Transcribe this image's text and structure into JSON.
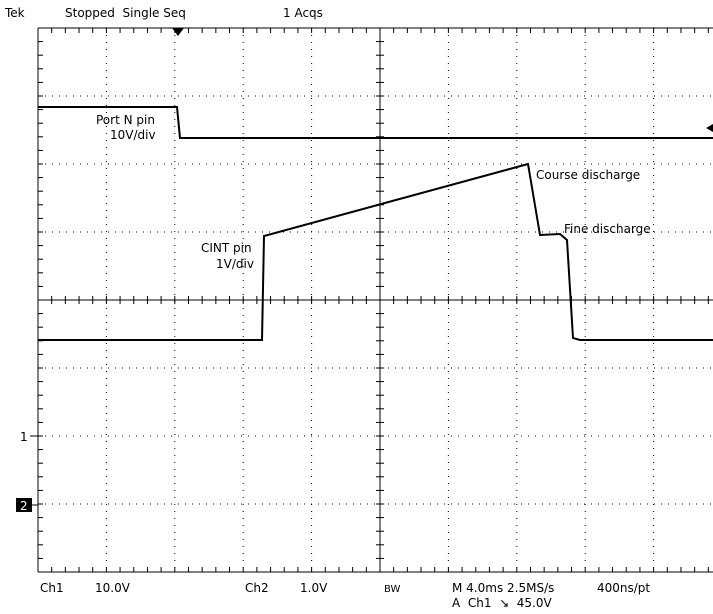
{
  "header": {
    "brand": "Tek",
    "status": "Stopped  Single Seq",
    "acquisitions": "1 Acqs"
  },
  "traces": {
    "ch1_label": "Port N pin",
    "ch1_scale": "10V/div",
    "ch2_label": "CINT pin",
    "ch2_scale": "1V/div",
    "annotations": [
      "Course discharge",
      "Fine discharge"
    ],
    "markers": [
      "1",
      "2"
    ]
  },
  "footer": {
    "ch1": "Ch1",
    "ch1_volts": "10.0V",
    "ch2": "Ch2",
    "ch2_volts": "1.0V",
    "bw": "BW",
    "timebase": "M 4.0ms 2.5MS/s",
    "resolution": "400ns/pt",
    "trigger": "A  Ch1  ↘  45.0V"
  }
}
